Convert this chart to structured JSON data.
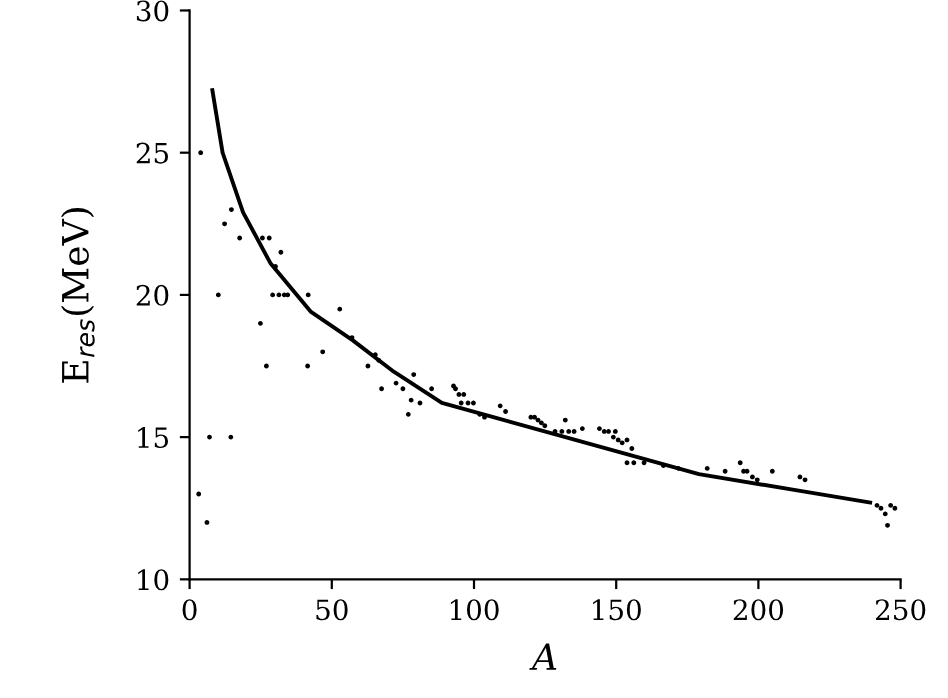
{
  "chart_data": {
    "type": "scatter",
    "xlabel": "A",
    "ylabel": "E$_{res}$(MeV)",
    "xlim": [
      0,
      250
    ],
    "ylim": [
      10,
      30
    ],
    "xticks": [
      0,
      50,
      100,
      150,
      200,
      250
    ],
    "yticks": [
      10,
      15,
      20,
      25,
      30
    ],
    "grid": false,
    "series": [
      {
        "marker": "circle",
        "color": "#000000",
        "x": [
          3.9,
          14.7,
          12.3,
          17.6,
          25.6,
          28.0,
          32.1,
          30.2,
          10.1,
          29.2,
          31.4,
          33.3,
          34.5,
          41.7,
          52.8,
          24.9,
          57.1,
          27.0,
          41.5,
          46.8,
          65.3,
          66.5,
          62.7,
          67.5,
          78.8,
          72.6,
          75.0,
          76.9,
          77.9,
          81.0,
          85.1,
          7.0,
          14.5,
          3.2,
          6.1,
          92.8,
          93.5,
          94.7,
          96.4,
          95.5,
          97.9,
          99.8,
          102.0,
          103.7,
          109.2,
          111.1,
          120.0,
          121.3,
          122.5,
          123.7,
          124.9,
          128.5,
          130.9,
          133.3,
          135.2,
          132.1,
          138.1,
          144.1,
          145.8,
          147.3,
          149.0,
          149.7,
          150.7,
          152.1,
          153.8,
          155.5,
          153.8,
          156.2,
          159.8,
          166.6,
          171.9,
          182.0,
          188.3,
          193.6,
          194.8,
          196.0,
          197.9,
          199.6,
          204.9,
          214.6,
          216.4,
          241.7,
          243.1,
          244.6,
          246.5,
          248.0,
          245.4
        ],
        "values": [
          25.0,
          23.0,
          22.5,
          22.0,
          22.0,
          22.0,
          21.5,
          21.0,
          20.0,
          20.0,
          20.0,
          20.0,
          20.0,
          20.0,
          19.5,
          19.0,
          18.5,
          17.5,
          17.5,
          18.0,
          17.9,
          17.7,
          17.5,
          16.7,
          17.2,
          16.9,
          16.7,
          15.8,
          16.3,
          16.2,
          16.7,
          15.0,
          15.0,
          13.0,
          12.0,
          16.8,
          16.7,
          16.5,
          16.5,
          16.2,
          16.2,
          16.2,
          15.8,
          15.7,
          16.1,
          15.9,
          15.7,
          15.7,
          15.6,
          15.5,
          15.4,
          15.2,
          15.2,
          15.2,
          15.2,
          15.6,
          15.3,
          15.3,
          15.2,
          15.2,
          15.0,
          15.2,
          14.9,
          14.8,
          14.9,
          14.6,
          14.1,
          14.1,
          14.1,
          14.0,
          13.9,
          13.9,
          13.8,
          14.1,
          13.8,
          13.8,
          13.6,
          13.5,
          13.8,
          13.6,
          13.5,
          12.6,
          12.5,
          12.3,
          12.6,
          12.5,
          11.9
        ]
      },
      {
        "type": "line",
        "marker": "none",
        "color": "#000000",
        "line_style": "solid",
        "x": [
          8.0,
          11.6,
          18.8,
          28.5,
          42.7,
          57.4,
          71.8,
          88.7,
          106.8,
          142.9,
          179.1,
          215.2,
          239.3
        ],
        "values": [
          27.2,
          25.0,
          22.9,
          21.1,
          19.4,
          18.4,
          17.3,
          16.2,
          15.7,
          14.7,
          13.7,
          13.1,
          12.7
        ]
      }
    ]
  }
}
